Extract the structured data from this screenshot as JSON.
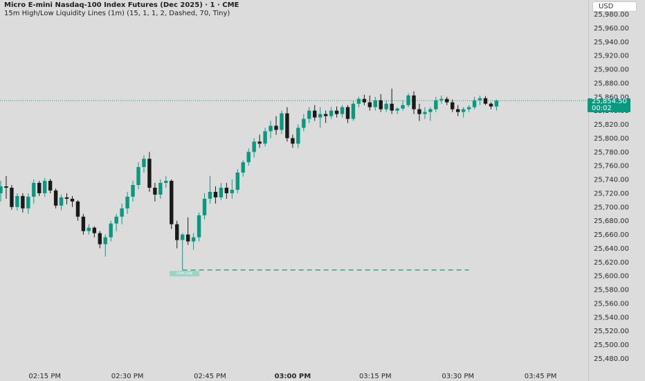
{
  "header": {
    "title": "Micro E-mini Nasdaq-100 Index Futures (Dec 2025) · 1 · CME",
    "indicator": "15m High/Low Liquidity Lines (1m) (15, 1, 1, 2, Dashed, 70, Tiny)",
    "currency": "USD"
  },
  "last_price": {
    "value": "25,854.50",
    "countdown": "00:02"
  },
  "liquidity_label": "15m Low",
  "colors": {
    "up": "#089981",
    "down": "#1a1a1a",
    "background": "#dcdcdc",
    "liquidity_line": "#089981"
  },
  "chart_data": {
    "type": "candlestick",
    "symbol": "MNQ",
    "interval": "1",
    "ylim": [
      25470,
      25990
    ],
    "y_ticks": [
      "25,480.00",
      "25,500.00",
      "25,520.00",
      "25,540.00",
      "25,560.00",
      "25,580.00",
      "25,600.00",
      "25,620.00",
      "25,640.00",
      "25,660.00",
      "25,680.00",
      "25,700.00",
      "25,720.00",
      "25,740.00",
      "25,760.00",
      "25,780.00",
      "25,800.00",
      "25,820.00",
      "25,840.00",
      "25,860.00",
      "25,880.00",
      "25,900.00",
      "25,920.00",
      "25,940.00",
      "25,960.00",
      "25,980.00"
    ],
    "x_ticks": [
      {
        "label": "02:15 PM",
        "minute": 8,
        "bold": false
      },
      {
        "label": "02:30 PM",
        "minute": 23,
        "bold": false
      },
      {
        "label": "02:45 PM",
        "minute": 38,
        "bold": false
      },
      {
        "label": "03:00 PM",
        "minute": 53,
        "bold": true
      },
      {
        "label": "03:15 PM",
        "minute": 68,
        "bold": false
      },
      {
        "label": "03:30 PM",
        "minute": 83,
        "bold": false
      },
      {
        "label": "03:45 PM",
        "minute": 98,
        "bold": false
      }
    ],
    "liquidity_line": {
      "label": "15m Low",
      "price": 25608.5,
      "start_minute": 33,
      "end_minute": 85,
      "style": "dashed"
    },
    "last_price": 25854.5,
    "candles": [
      {
        "o": 25720,
        "h": 25738,
        "l": 25708,
        "c": 25730
      },
      {
        "o": 25730,
        "h": 25745,
        "l": 25712,
        "c": 25728
      },
      {
        "o": 25728,
        "h": 25732,
        "l": 25696,
        "c": 25700
      },
      {
        "o": 25700,
        "h": 25720,
        "l": 25695,
        "c": 25716
      },
      {
        "o": 25716,
        "h": 25720,
        "l": 25692,
        "c": 25698
      },
      {
        "o": 25698,
        "h": 25720,
        "l": 25690,
        "c": 25715
      },
      {
        "o": 25715,
        "h": 25740,
        "l": 25705,
        "c": 25735
      },
      {
        "o": 25735,
        "h": 25738,
        "l": 25716,
        "c": 25720
      },
      {
        "o": 25720,
        "h": 25742,
        "l": 25715,
        "c": 25738
      },
      {
        "o": 25738,
        "h": 25741,
        "l": 25720,
        "c": 25724
      },
      {
        "o": 25724,
        "h": 25727,
        "l": 25698,
        "c": 25702
      },
      {
        "o": 25702,
        "h": 25718,
        "l": 25695,
        "c": 25714
      },
      {
        "o": 25714,
        "h": 25720,
        "l": 25704,
        "c": 25712
      },
      {
        "o": 25712,
        "h": 25716,
        "l": 25700,
        "c": 25708
      },
      {
        "o": 25708,
        "h": 25710,
        "l": 25680,
        "c": 25686
      },
      {
        "o": 25686,
        "h": 25690,
        "l": 25660,
        "c": 25665
      },
      {
        "o": 25665,
        "h": 25675,
        "l": 25660,
        "c": 25670
      },
      {
        "o": 25670,
        "h": 25672,
        "l": 25656,
        "c": 25662
      },
      {
        "o": 25662,
        "h": 25665,
        "l": 25640,
        "c": 25646
      },
      {
        "o": 25646,
        "h": 25660,
        "l": 25628,
        "c": 25656
      },
      {
        "o": 25656,
        "h": 25680,
        "l": 25650,
        "c": 25676
      },
      {
        "o": 25676,
        "h": 25690,
        "l": 25665,
        "c": 25686
      },
      {
        "o": 25686,
        "h": 25705,
        "l": 25675,
        "c": 25698
      },
      {
        "o": 25698,
        "h": 25722,
        "l": 25690,
        "c": 25715
      },
      {
        "o": 25715,
        "h": 25738,
        "l": 25708,
        "c": 25732
      },
      {
        "o": 25732,
        "h": 25765,
        "l": 25726,
        "c": 25758
      },
      {
        "o": 25758,
        "h": 25775,
        "l": 25750,
        "c": 25770
      },
      {
        "o": 25770,
        "h": 25780,
        "l": 25722,
        "c": 25728
      },
      {
        "o": 25728,
        "h": 25735,
        "l": 25708,
        "c": 25718
      },
      {
        "o": 25718,
        "h": 25740,
        "l": 25712,
        "c": 25735
      },
      {
        "o": 25735,
        "h": 25745,
        "l": 25728,
        "c": 25738
      },
      {
        "o": 25738,
        "h": 25740,
        "l": 25668,
        "c": 25675
      },
      {
        "o": 25675,
        "h": 25680,
        "l": 25640,
        "c": 25652
      },
      {
        "o": 25652,
        "h": 25662,
        "l": 25608,
        "c": 25660
      },
      {
        "o": 25660,
        "h": 25685,
        "l": 25645,
        "c": 25650
      },
      {
        "o": 25650,
        "h": 25662,
        "l": 25638,
        "c": 25656
      },
      {
        "o": 25656,
        "h": 25692,
        "l": 25650,
        "c": 25688
      },
      {
        "o": 25688,
        "h": 25720,
        "l": 25682,
        "c": 25712
      },
      {
        "o": 25712,
        "h": 25745,
        "l": 25705,
        "c": 25722
      },
      {
        "o": 25722,
        "h": 25730,
        "l": 25705,
        "c": 25714
      },
      {
        "o": 25714,
        "h": 25735,
        "l": 25710,
        "c": 25728
      },
      {
        "o": 25728,
        "h": 25735,
        "l": 25712,
        "c": 25720
      },
      {
        "o": 25720,
        "h": 25740,
        "l": 25712,
        "c": 25725
      },
      {
        "o": 25725,
        "h": 25755,
        "l": 25720,
        "c": 25750
      },
      {
        "o": 25750,
        "h": 25768,
        "l": 25744,
        "c": 25765
      },
      {
        "o": 25765,
        "h": 25785,
        "l": 25760,
        "c": 25780
      },
      {
        "o": 25780,
        "h": 25800,
        "l": 25772,
        "c": 25795
      },
      {
        "o": 25795,
        "h": 25805,
        "l": 25786,
        "c": 25792
      },
      {
        "o": 25792,
        "h": 25815,
        "l": 25788,
        "c": 25810
      },
      {
        "o": 25810,
        "h": 25825,
        "l": 25800,
        "c": 25818
      },
      {
        "o": 25818,
        "h": 25832,
        "l": 25805,
        "c": 25812
      },
      {
        "o": 25812,
        "h": 25840,
        "l": 25806,
        "c": 25836
      },
      {
        "o": 25836,
        "h": 25845,
        "l": 25795,
        "c": 25800
      },
      {
        "o": 25800,
        "h": 25805,
        "l": 25786,
        "c": 25792
      },
      {
        "o": 25792,
        "h": 25820,
        "l": 25786,
        "c": 25815
      },
      {
        "o": 25815,
        "h": 25835,
        "l": 25810,
        "c": 25828
      },
      {
        "o": 25828,
        "h": 25845,
        "l": 25822,
        "c": 25840
      },
      {
        "o": 25840,
        "h": 25848,
        "l": 25825,
        "c": 25830
      },
      {
        "o": 25830,
        "h": 25845,
        "l": 25815,
        "c": 25835
      },
      {
        "o": 25835,
        "h": 25840,
        "l": 25822,
        "c": 25832
      },
      {
        "o": 25832,
        "h": 25845,
        "l": 25828,
        "c": 25840
      },
      {
        "o": 25840,
        "h": 25846,
        "l": 25830,
        "c": 25835
      },
      {
        "o": 25835,
        "h": 25848,
        "l": 25830,
        "c": 25845
      },
      {
        "o": 25845,
        "h": 25848,
        "l": 25822,
        "c": 25828
      },
      {
        "o": 25828,
        "h": 25855,
        "l": 25825,
        "c": 25850
      },
      {
        "o": 25850,
        "h": 25860,
        "l": 25845,
        "c": 25857
      },
      {
        "o": 25857,
        "h": 25863,
        "l": 25848,
        "c": 25852
      },
      {
        "o": 25852,
        "h": 25862,
        "l": 25840,
        "c": 25845
      },
      {
        "o": 25845,
        "h": 25860,
        "l": 25840,
        "c": 25855
      },
      {
        "o": 25855,
        "h": 25864,
        "l": 25838,
        "c": 25842
      },
      {
        "o": 25842,
        "h": 25855,
        "l": 25838,
        "c": 25850
      },
      {
        "o": 25850,
        "h": 25872,
        "l": 25835,
        "c": 25840
      },
      {
        "o": 25840,
        "h": 25845,
        "l": 25835,
        "c": 25843
      },
      {
        "o": 25843,
        "h": 25855,
        "l": 25840,
        "c": 25848
      },
      {
        "o": 25848,
        "h": 25865,
        "l": 25845,
        "c": 25862
      },
      {
        "o": 25862,
        "h": 25868,
        "l": 25835,
        "c": 25842
      },
      {
        "o": 25842,
        "h": 25850,
        "l": 25825,
        "c": 25835
      },
      {
        "o": 25835,
        "h": 25845,
        "l": 25828,
        "c": 25838
      },
      {
        "o": 25838,
        "h": 25845,
        "l": 25825,
        "c": 25842
      },
      {
        "o": 25842,
        "h": 25860,
        "l": 25838,
        "c": 25855
      },
      {
        "o": 25855,
        "h": 25862,
        "l": 25850,
        "c": 25857
      },
      {
        "o": 25857,
        "h": 25860,
        "l": 25848,
        "c": 25852
      },
      {
        "o": 25852,
        "h": 25856,
        "l": 25838,
        "c": 25842
      },
      {
        "o": 25842,
        "h": 25848,
        "l": 25832,
        "c": 25838
      },
      {
        "o": 25838,
        "h": 25845,
        "l": 25830,
        "c": 25842
      },
      {
        "o": 25842,
        "h": 25848,
        "l": 25838,
        "c": 25845
      },
      {
        "o": 25845,
        "h": 25860,
        "l": 25842,
        "c": 25855
      },
      {
        "o": 25855,
        "h": 25862,
        "l": 25848,
        "c": 25858
      },
      {
        "o": 25858,
        "h": 25861,
        "l": 25848,
        "c": 25850
      },
      {
        "o": 25850,
        "h": 25852,
        "l": 25842,
        "c": 25846
      },
      {
        "o": 25846,
        "h": 25856,
        "l": 25840,
        "c": 25854.5
      }
    ]
  }
}
